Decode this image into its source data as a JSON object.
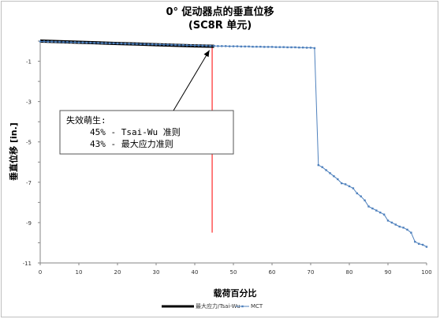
{
  "chart_data": {
    "type": "line",
    "title": "0°  促动器点的垂直位移",
    "subtitle": "(SC8R 单元)",
    "xlabel": "载荷百分比",
    "ylabel": "垂直位移 [in.]",
    "xlim": [
      0,
      100
    ],
    "ylim": [
      -11,
      0
    ],
    "x_ticks": [
      0,
      10,
      20,
      30,
      40,
      50,
      60,
      70,
      80,
      90,
      100
    ],
    "y_ticks": [
      -1,
      -3,
      -5,
      -7,
      -9,
      -11
    ],
    "legend_position": "bottom",
    "grid": false,
    "series": [
      {
        "name": "最大应力/Tsai-Wu",
        "color": "#000000",
        "x": [
          0,
          5,
          10,
          15,
          20,
          25,
          30,
          35,
          40,
          45
        ],
        "y": [
          0,
          -0.03,
          -0.06,
          -0.09,
          -0.12,
          -0.15,
          -0.18,
          -0.21,
          -0.24,
          -0.26
        ]
      },
      {
        "name": "MCT",
        "color": "#4f81bd",
        "x": [
          0,
          1,
          2,
          3,
          4,
          5,
          6,
          7,
          8,
          9,
          10,
          11,
          12,
          13,
          14,
          15,
          16,
          17,
          18,
          19,
          20,
          21,
          22,
          23,
          24,
          25,
          26,
          27,
          28,
          29,
          30,
          31,
          32,
          33,
          34,
          35,
          36,
          37,
          38,
          39,
          40,
          41,
          42,
          43,
          44,
          45,
          46,
          47,
          48,
          49,
          50,
          51,
          52,
          53,
          54,
          55,
          56,
          57,
          58,
          59,
          60,
          61,
          62,
          63,
          64,
          65,
          66,
          67,
          68,
          69,
          70,
          71,
          72,
          73,
          74,
          75,
          76,
          77,
          78,
          79,
          80,
          81,
          82,
          83,
          84,
          85,
          86,
          87,
          88,
          89,
          90,
          91,
          92,
          93,
          94,
          95,
          96,
          97,
          98,
          99,
          100
        ],
        "y": [
          -0.02,
          -0.02,
          -0.03,
          -0.03,
          -0.04,
          -0.04,
          -0.05,
          -0.05,
          -0.06,
          -0.06,
          -0.07,
          -0.07,
          -0.08,
          -0.08,
          -0.09,
          -0.09,
          -0.1,
          -0.1,
          -0.11,
          -0.11,
          -0.12,
          -0.12,
          -0.13,
          -0.13,
          -0.14,
          -0.14,
          -0.15,
          -0.15,
          -0.16,
          -0.16,
          -0.17,
          -0.17,
          -0.18,
          -0.18,
          -0.19,
          -0.19,
          -0.2,
          -0.2,
          -0.21,
          -0.21,
          -0.22,
          -0.22,
          -0.23,
          -0.23,
          -0.24,
          -0.24,
          -0.25,
          -0.25,
          -0.25,
          -0.26,
          -0.26,
          -0.26,
          -0.27,
          -0.27,
          -0.27,
          -0.28,
          -0.28,
          -0.28,
          -0.29,
          -0.29,
          -0.29,
          -0.3,
          -0.3,
          -0.3,
          -0.31,
          -0.31,
          -0.31,
          -0.32,
          -0.32,
          -0.33,
          -0.33,
          -0.35,
          -6.15,
          -6.25,
          -6.4,
          -6.55,
          -6.7,
          -6.85,
          -7.05,
          -7.1,
          -7.2,
          -7.3,
          -7.55,
          -7.7,
          -7.9,
          -8.2,
          -8.3,
          -8.4,
          -8.5,
          -8.6,
          -8.9,
          -9.0,
          -9.1,
          -9.2,
          -9.25,
          -9.35,
          -9.5,
          -9.95,
          -10.05,
          -10.1,
          -10.2
        ]
      }
    ],
    "annotation": {
      "lines": [
        "失效萌生:",
        "45% - Tsai-Wu 准则",
        "43% - 最大应力准则"
      ],
      "arrow_target": [
        44,
        -0.26
      ]
    },
    "vertical_marker": {
      "x": 44.5,
      "y_range": [
        -0.27,
        -9.5
      ],
      "color": "#ff0000"
    }
  }
}
